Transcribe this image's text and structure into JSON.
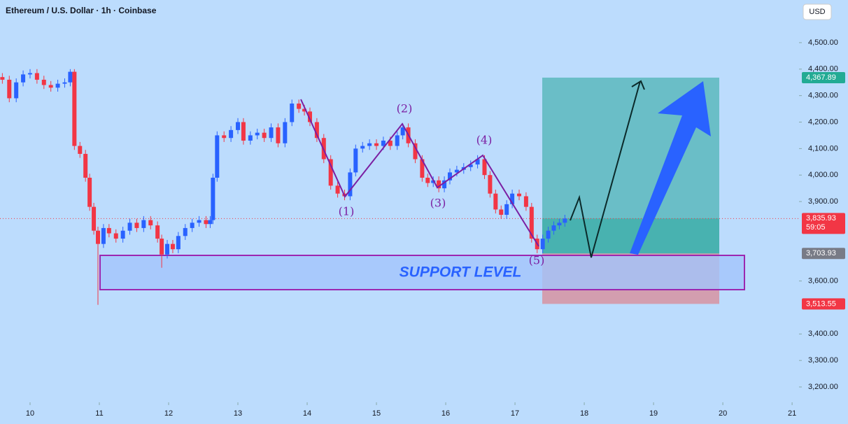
{
  "chart_data": {
    "type": "candlestick",
    "title": "Ethereum / U.S. Dollar · 1h · Coinbase",
    "currency": "USD",
    "up_color": "#2962ff",
    "down_color": "#f23645",
    "xlim": [
      9.566,
      21.1
    ],
    "ylim": [
      3142,
      4661
    ],
    "xticks": [
      10,
      11,
      12,
      13,
      14,
      15,
      16,
      17,
      18,
      19,
      20,
      21
    ],
    "yticks": [
      {
        "value": 4500,
        "label": "4,500.00"
      },
      {
        "value": 4400,
        "label": "4,400.00"
      },
      {
        "value": 4300,
        "label": "4,300.00"
      },
      {
        "value": 4200,
        "label": "4,200.00"
      },
      {
        "value": 4100,
        "label": "4,100.00"
      },
      {
        "value": 4000,
        "label": "4,000.00"
      },
      {
        "value": 3900,
        "label": "3,900.00"
      },
      {
        "value": 3600,
        "label": "3,600.00"
      },
      {
        "value": 3400,
        "label": "3,400.00"
      },
      {
        "value": 3300,
        "label": "3,300.00"
      },
      {
        "value": 3200,
        "label": "3,200.00"
      }
    ],
    "x": [
      9.6,
      9.7,
      9.8,
      9.9,
      10.0,
      10.1,
      10.2,
      10.3,
      10.4,
      10.5,
      10.58,
      10.64,
      10.72,
      10.8,
      10.86,
      10.92,
      10.98,
      11.06,
      11.14,
      11.24,
      11.34,
      11.44,
      11.54,
      11.64,
      11.74,
      11.84,
      11.9,
      11.98,
      12.06,
      12.14,
      12.24,
      12.34,
      12.44,
      12.54,
      12.6,
      12.64,
      12.7,
      12.8,
      12.9,
      13.0,
      13.08,
      13.18,
      13.28,
      13.38,
      13.48,
      13.58,
      13.68,
      13.78,
      13.88,
      13.96,
      14.04,
      14.14,
      14.24,
      14.34,
      14.44,
      14.54,
      14.62,
      14.7,
      14.8,
      14.9,
      15.0,
      15.1,
      15.2,
      15.3,
      15.38,
      15.46,
      15.56,
      15.66,
      15.74,
      15.82,
      15.9,
      15.98,
      16.06,
      16.16,
      16.26,
      16.36,
      16.46,
      16.56,
      16.64,
      16.72,
      16.8,
      16.88,
      16.96,
      17.06,
      17.16,
      17.24,
      17.32,
      17.4,
      17.48,
      17.56,
      17.64,
      17.72
    ],
    "open": [
      4370,
      4360,
      4290,
      4350,
      4380,
      4385,
      4360,
      4340,
      4330,
      4345,
      4350,
      4390,
      4110,
      4080,
      3990,
      3880,
      3790,
      3740,
      3800,
      3780,
      3760,
      3790,
      3820,
      3800,
      3830,
      3810,
      3760,
      3700,
      3740,
      3720,
      3770,
      3800,
      3820,
      3830,
      3815,
      3830,
      3990,
      4150,
      4140,
      4170,
      4200,
      4130,
      4150,
      4160,
      4140,
      4180,
      4120,
      4200,
      4270,
      4250,
      4240,
      4200,
      4140,
      4060,
      3960,
      3930,
      3920,
      4010,
      4100,
      4110,
      4120,
      4110,
      4130,
      4110,
      4150,
      4180,
      4120,
      4060,
      3990,
      3970,
      3980,
      3950,
      3980,
      4010,
      4020,
      4030,
      4040,
      4060,
      4000,
      3930,
      3870,
      3850,
      3890,
      3930,
      3920,
      3880,
      3760,
      3720,
      3760,
      3790,
      3810,
      3820
    ],
    "high": [
      4385,
      4375,
      4365,
      4395,
      4400,
      4400,
      4375,
      4355,
      4360,
      4365,
      4400,
      4400,
      4125,
      4095,
      4005,
      3895,
      3805,
      3815,
      3815,
      3795,
      3805,
      3835,
      3835,
      3845,
      3845,
      3825,
      3775,
      3755,
      3755,
      3785,
      3815,
      3835,
      3845,
      3845,
      3845,
      4005,
      4165,
      4165,
      4185,
      4215,
      4215,
      4165,
      4175,
      4175,
      4195,
      4195,
      4215,
      4285,
      4285,
      4265,
      4255,
      4215,
      4155,
      4075,
      3975,
      3945,
      4025,
      4115,
      4125,
      4135,
      4135,
      4145,
      4145,
      4165,
      4195,
      4195,
      4135,
      4075,
      4005,
      3995,
      3995,
      3995,
      4025,
      4035,
      4045,
      4055,
      4075,
      4075,
      4015,
      3945,
      3885,
      3905,
      3945,
      3945,
      3935,
      3895,
      3775,
      3775,
      3805,
      3825,
      3835,
      3850
    ],
    "low": [
      4345,
      4275,
      4275,
      4335,
      4365,
      4345,
      4325,
      4315,
      4315,
      4330,
      4335,
      4095,
      4065,
      3975,
      3865,
      3775,
      3510,
      3725,
      3765,
      3745,
      3745,
      3775,
      3785,
      3785,
      3795,
      3745,
      3650,
      3685,
      3705,
      3705,
      3755,
      3785,
      3805,
      3800,
      3800,
      3815,
      3975,
      4125,
      4125,
      4155,
      4115,
      4115,
      4135,
      4125,
      4125,
      4105,
      4105,
      4185,
      4235,
      4225,
      4185,
      4125,
      4045,
      3945,
      3915,
      3905,
      3905,
      3995,
      4085,
      4095,
      4095,
      4095,
      4095,
      4095,
      4135,
      4105,
      4045,
      3975,
      3955,
      3955,
      3935,
      3935,
      3965,
      3995,
      4005,
      4015,
      4025,
      3985,
      3915,
      3855,
      3835,
      3835,
      3875,
      3905,
      3865,
      3745,
      3705,
      3705,
      3745,
      3775,
      3795,
      3805
    ],
    "close": [
      4360,
      4290,
      4350,
      4380,
      4385,
      4360,
      4340,
      4330,
      4345,
      4350,
      4390,
      4110,
      4080,
      3990,
      3880,
      3790,
      3740,
      3800,
      3780,
      3760,
      3790,
      3820,
      3800,
      3830,
      3810,
      3760,
      3700,
      3740,
      3720,
      3770,
      3800,
      3820,
      3830,
      3815,
      3830,
      3990,
      4150,
      4140,
      4170,
      4200,
      4130,
      4150,
      4160,
      4140,
      4180,
      4120,
      4200,
      4270,
      4250,
      4240,
      4200,
      4140,
      4060,
      3960,
      3930,
      3920,
      4010,
      4100,
      4110,
      4120,
      4110,
      4130,
      4110,
      4150,
      4180,
      4120,
      4060,
      3990,
      3970,
      3980,
      3950,
      3980,
      4010,
      4020,
      4030,
      4040,
      4060,
      4000,
      3930,
      3870,
      3850,
      3890,
      3930,
      3920,
      3880,
      3760,
      3720,
      3760,
      3790,
      3810,
      3820,
      3835.93
    ],
    "last_price": {
      "value": 3835.93,
      "label": "3,835.93"
    },
    "countdown": "59:05",
    "target": {
      "value": 4367.89,
      "label": "4,367.89"
    },
    "entry": {
      "value": 3703.93,
      "label": "3,703.93"
    },
    "stop": {
      "value": 3513.55,
      "label": "3,513.55"
    },
    "waves": [
      "(1)",
      "(2)",
      "(3)",
      "(4)",
      "(5)"
    ],
    "support_label": "SUPPORT LEVEL"
  }
}
